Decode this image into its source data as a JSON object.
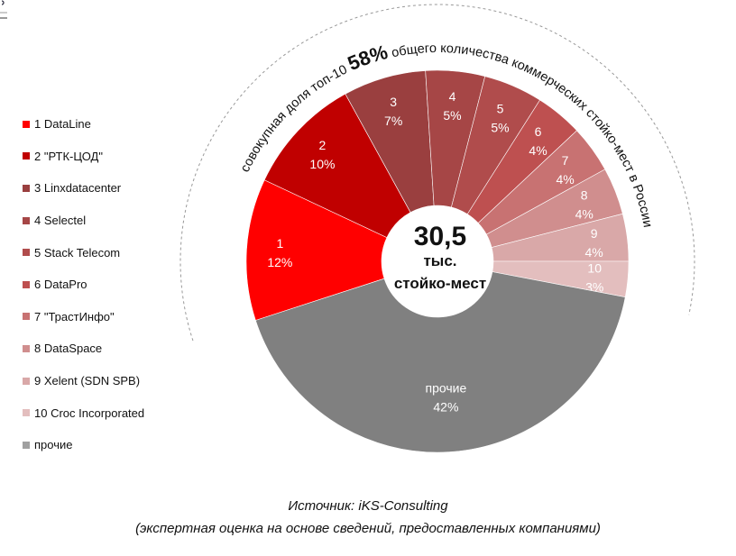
{
  "chart_data": {
    "type": "pie",
    "subtype": "donut",
    "center_label": {
      "value": "30,5",
      "line2": "тыс.",
      "line3": "стойко-мест"
    },
    "arc_title": {
      "prefix": "совокупная доля топ-10 ",
      "highlight": "58%",
      "suffix": " общего количества коммерческих стойко-мест в России"
    },
    "slices": [
      {
        "id": "1",
        "name": "DataLine",
        "legend": "1 DataLine",
        "value": 12,
        "label": "12%",
        "color": "#FF0000"
      },
      {
        "id": "2",
        "name": "\"РТК-ЦОД\"",
        "legend": "2 \"РТК-ЦОД\"",
        "value": 10,
        "label": "10%",
        "color": "#C00000"
      },
      {
        "id": "3",
        "name": "Linxdatacenter",
        "legend": "3 Linxdatacenter",
        "value": 7,
        "label": "7%",
        "color": "#9A3F3F"
      },
      {
        "id": "4",
        "name": "Selectel",
        "legend": "4 Selectel",
        "value": 5,
        "label": "5%",
        "color": "#A64646"
      },
      {
        "id": "5",
        "name": "Stack Telecom",
        "legend": "5 Stack Telecom",
        "value": 5,
        "label": "5%",
        "color": "#B04C4C"
      },
      {
        "id": "6",
        "name": "DataPro",
        "legend": "6 DataPro",
        "value": 4,
        "label": "4%",
        "color": "#BE5050"
      },
      {
        "id": "7",
        "name": "\"ТрастИнфо\"",
        "legend": "7 \"ТрастИнфо\"",
        "value": 4,
        "label": "4%",
        "color": "#C87272"
      },
      {
        "id": "8",
        "name": "DataSpace",
        "legend": "8 DataSpace",
        "value": 4,
        "label": "4%",
        "color": "#D08E8E"
      },
      {
        "id": "9",
        "name": "Xelent (SDN SPB)",
        "legend": "9 Xelent (SDN SPB)",
        "value": 4,
        "label": "4%",
        "color": "#D9A8A8"
      },
      {
        "id": "10",
        "name": "Croc Incorporated",
        "legend": "10 Croc Incorporated",
        "value": 3,
        "label": "3%",
        "color": "#E3BEBE"
      },
      {
        "id": "прочие",
        "name": "прочие",
        "legend": "прочие",
        "value": 42,
        "label": "42%",
        "color": "#808080",
        "legend_color": "#A0A0A0"
      }
    ]
  },
  "caption": {
    "source": "Источник: iKS-Consulting",
    "note": "(экспертная оценка на основе сведений, предоставленных компаниями)"
  }
}
